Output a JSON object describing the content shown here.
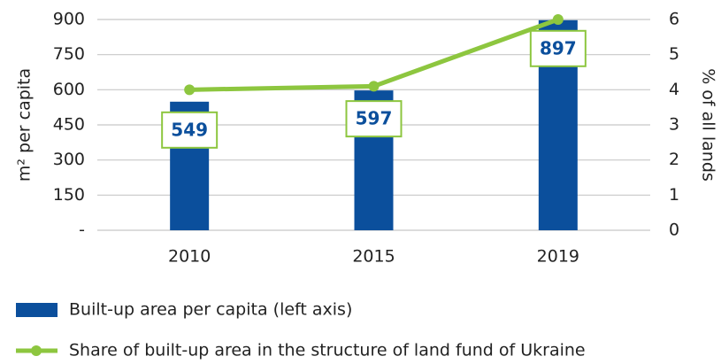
{
  "chart_data": {
    "type": "bar_line",
    "categories": [
      "2010",
      "2015",
      "2019"
    ],
    "series": [
      {
        "name": "Built-up area per capita (left axis)",
        "type": "bar",
        "color": "#0b4f9c",
        "values": [
          549,
          597,
          897
        ]
      },
      {
        "name": "Share of built-up area in the structure of land fund of Ukraine",
        "type": "line",
        "axis": "y2",
        "color": "#8dc63f",
        "values": [
          4.0,
          4.1,
          6.0
        ]
      }
    ],
    "ylabel": "m² per capita",
    "y2label": "% of all lands",
    "ylim": [
      0,
      900
    ],
    "yticks": [
      {
        "value": 0,
        "label": "-"
      },
      150,
      300,
      450,
      600,
      750,
      900
    ],
    "y2lim": [
      0,
      6
    ],
    "y2ticks": [
      0,
      1,
      2,
      3,
      4,
      5,
      6
    ],
    "grid": true,
    "legend": "bottom"
  }
}
